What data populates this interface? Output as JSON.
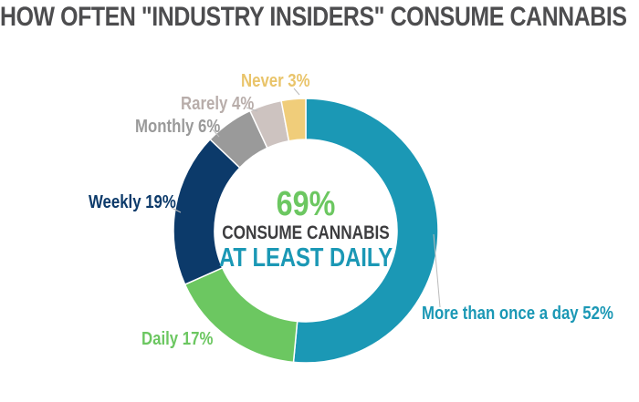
{
  "chart_data": {
    "type": "pie",
    "variant": "donut",
    "title": "HOW OFTEN \"INDUSTRY INSIDERS\" CONSUME CANNABIS",
    "slices": [
      {
        "label": "More than once a day",
        "value": 52,
        "display": "More than once a day 52%",
        "color": "#1b98b5"
      },
      {
        "label": "Daily",
        "value": 17,
        "display": "Daily 17%",
        "color": "#6cc761"
      },
      {
        "label": "Weekly",
        "value": 19,
        "display": "Weekly 19%",
        "color": "#0c3a6a"
      },
      {
        "label": "Monthly",
        "value": 6,
        "display": "Monthly 6%",
        "color": "#9a9a9a"
      },
      {
        "label": "Rarely",
        "value": 4,
        "display": "Rarely 4%",
        "color": "#cdc3c0"
      },
      {
        "label": "Never",
        "value": 3,
        "display": "Never 3%",
        "color": "#f0cd7a"
      }
    ],
    "center": {
      "value": "69%",
      "line1": "CONSUME CANNABIS",
      "line2": "AT LEAST DAILY"
    }
  }
}
